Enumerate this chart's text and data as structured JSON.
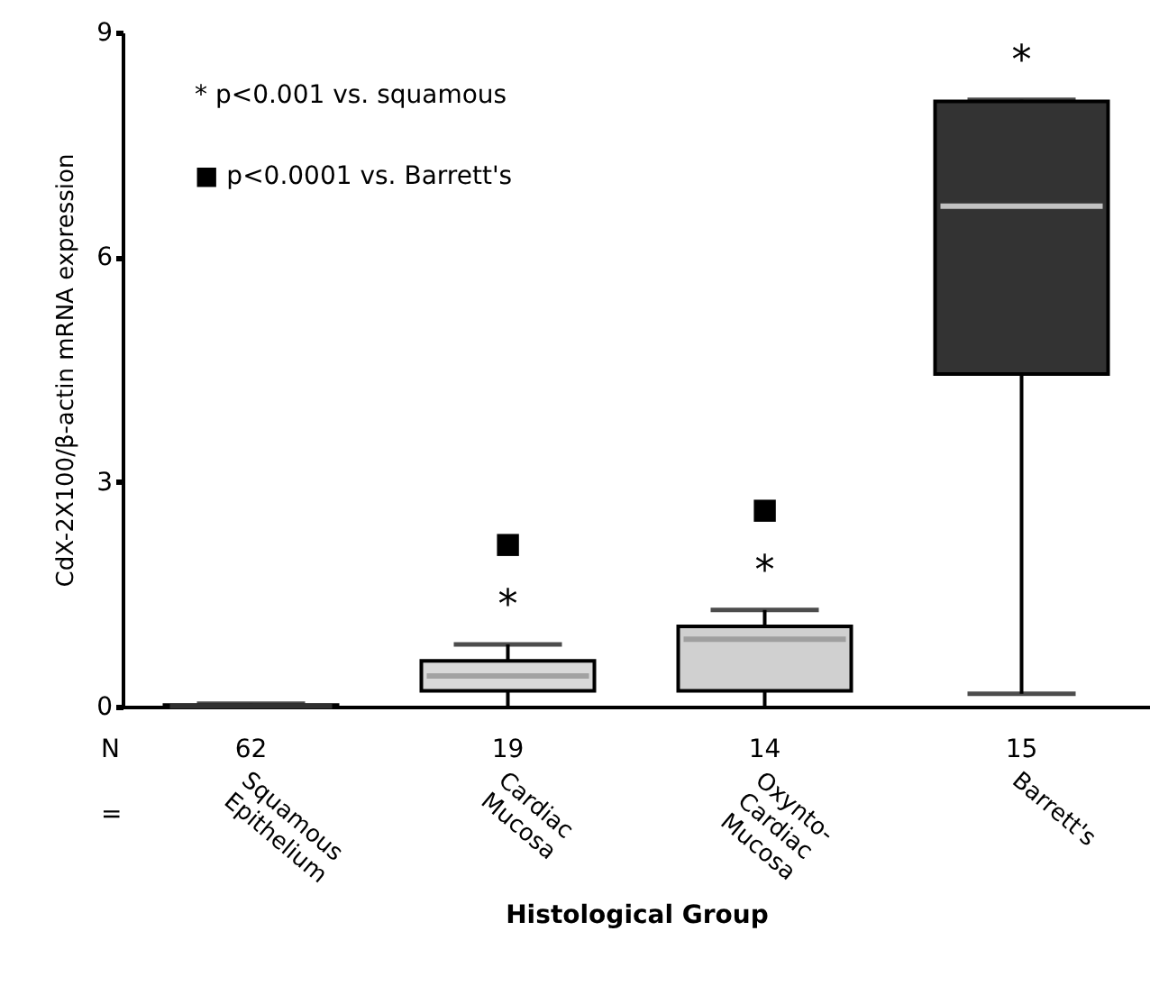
{
  "chart_data": {
    "type": "box",
    "xlabel": "Histological Group",
    "ylabel": "CdX-2X100/β-actin mRNA expression",
    "categories": [
      "Squamous Epithelium",
      "Cardiac Mucosa",
      "Oxynto-Cardiac Mucosa",
      "Barrett's"
    ],
    "boxes": [
      {
        "low": 0,
        "q1": 0,
        "median": 0.01,
        "q3": 0.02,
        "high": 0.04
      },
      {
        "low": 0,
        "q1": 0.21,
        "median": 0.41,
        "q3": 0.61,
        "high": 0.83
      },
      {
        "low": 0,
        "q1": 0.21,
        "median": 0.9,
        "q3": 1.07,
        "high": 1.29
      },
      {
        "low": 0.17,
        "q1": 4.44,
        "median": 6.68,
        "q3": 8.08,
        "high": 8.1
      }
    ],
    "colors": [
      "#777777",
      "#d9d9d9",
      "#d0d0d0",
      "#333333"
    ],
    "ylim": [
      0,
      9
    ],
    "yticks": [
      0,
      3,
      6,
      9
    ],
    "grid": false,
    "annotations": [
      "* p<0.001 vs. squamous",
      "■ p<0.0001 vs. Barrett's",
      "N",
      "=",
      "62",
      "19",
      "14",
      "15",
      "*",
      "■",
      "*",
      "■",
      "*"
    ]
  }
}
